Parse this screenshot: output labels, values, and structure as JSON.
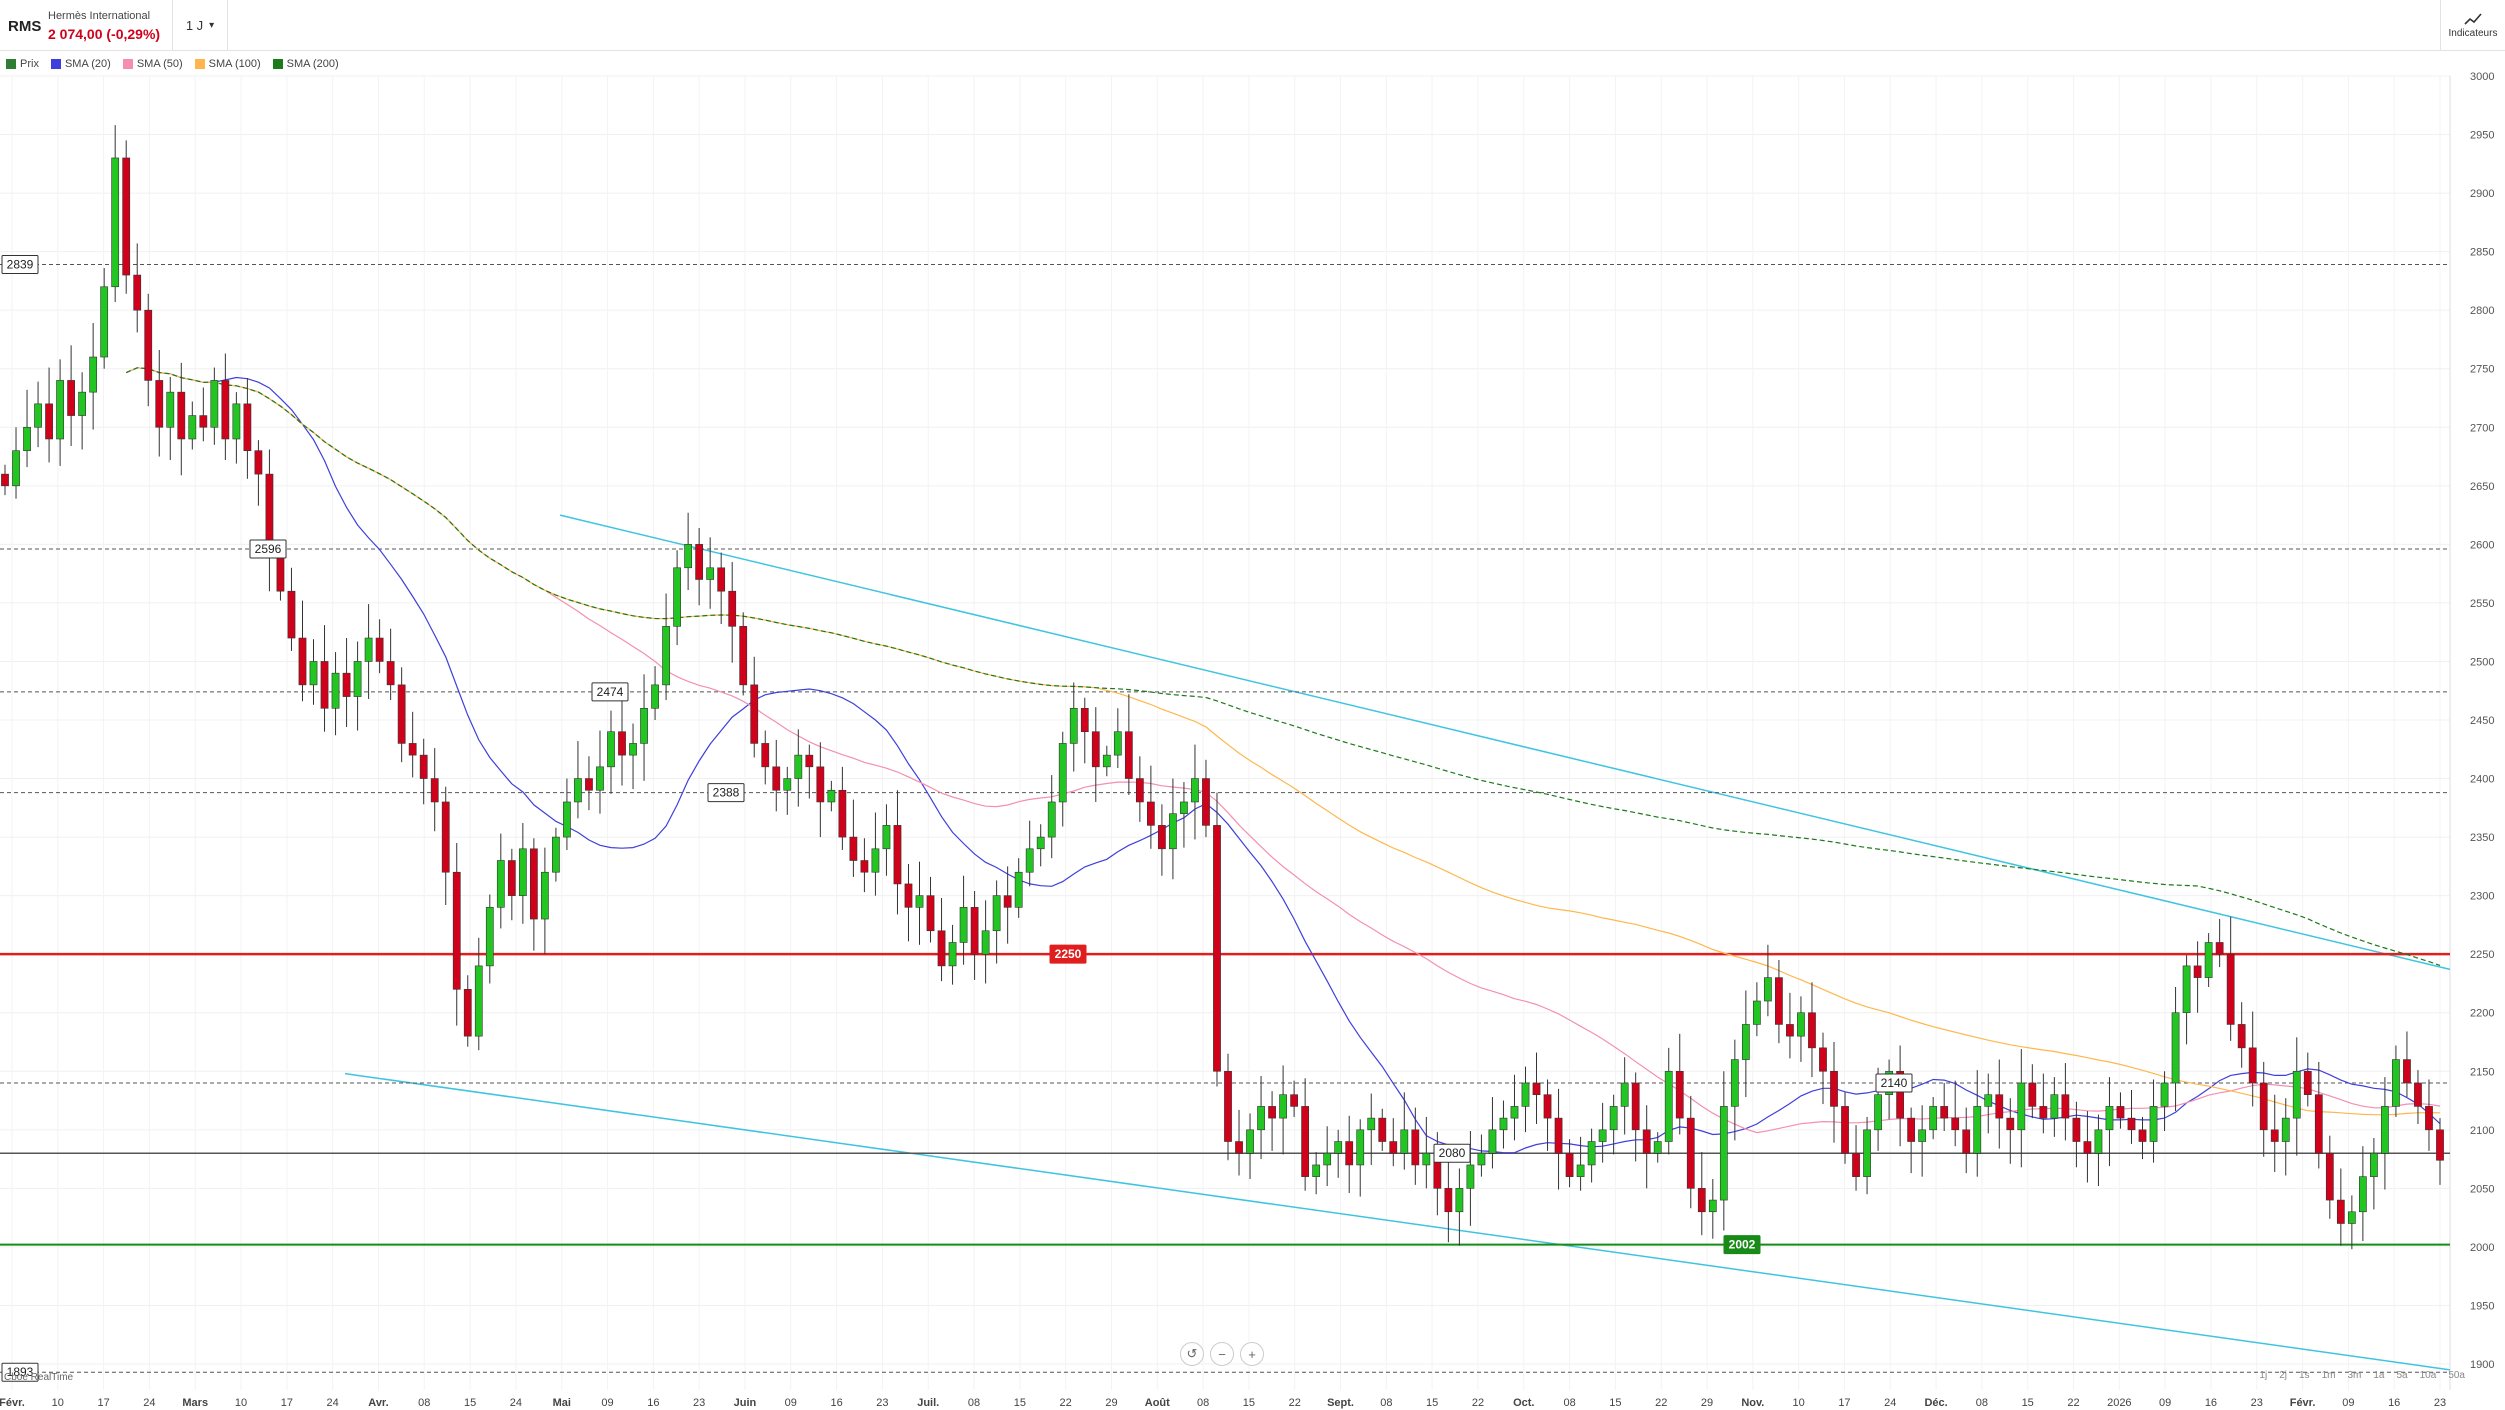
{
  "header": {
    "ticker": "RMS",
    "name": "Hermès International",
    "price": "2 074,00 (-0,29%)",
    "timeframe": "1 J",
    "indicators_label": "Indicateurs"
  },
  "legend": [
    {
      "label": "Prix",
      "color": "#2e7d32"
    },
    {
      "label": "SMA (20)",
      "color": "#3f3fdc"
    },
    {
      "label": "SMA (50)",
      "color": "#f48fb1"
    },
    {
      "label": "SMA (100)",
      "color": "#ffb74d"
    },
    {
      "label": "SMA (200)",
      "color": "#1b7a1b"
    }
  ],
  "periods": [
    "1j",
    "2j",
    "1s",
    "1m",
    "3m",
    "1a",
    "5a",
    "10a",
    "50a"
  ],
  "source": "Cboe RealTime",
  "chart_data": {
    "type": "candlestick",
    "ylim": [
      1900,
      3000
    ],
    "yticks": [
      1900,
      1950,
      2000,
      2050,
      2100,
      2150,
      2200,
      2250,
      2300,
      2350,
      2400,
      2450,
      2500,
      2550,
      2600,
      2650,
      2700,
      2750,
      2800,
      2850,
      2900,
      2950,
      3000
    ],
    "xticks": [
      "Févr.",
      "10",
      "17",
      "24",
      "Mars",
      "10",
      "17",
      "24",
      "Avr.",
      "08",
      "15",
      "24",
      "Mai",
      "09",
      "16",
      "23",
      "Juin",
      "09",
      "16",
      "23",
      "Juil.",
      "08",
      "15",
      "22",
      "29",
      "Août",
      "08",
      "15",
      "22",
      "Sept.",
      "08",
      "15",
      "22",
      "Oct.",
      "08",
      "15",
      "22",
      "29",
      "Nov.",
      "10",
      "17",
      "24",
      "Déc.",
      "08",
      "15",
      "22",
      "2026",
      "09",
      "16",
      "23",
      "Févr.",
      "09",
      "16",
      "23"
    ],
    "closes": [
      2650,
      2680,
      2700,
      2720,
      2690,
      2740,
      2710,
      2730,
      2760,
      2820,
      2930,
      2830,
      2800,
      2740,
      2700,
      2730,
      2690,
      2710,
      2700,
      2740,
      2690,
      2720,
      2680,
      2660,
      2590,
      2560,
      2520,
      2480,
      2500,
      2460,
      2490,
      2470,
      2500,
      2520,
      2500,
      2480,
      2430,
      2420,
      2400,
      2380,
      2320,
      2220,
      2180,
      2240,
      2290,
      2330,
      2300,
      2340,
      2280,
      2320,
      2350,
      2380,
      2400,
      2390,
      2410,
      2440,
      2420,
      2430,
      2460,
      2480,
      2530,
      2580,
      2600,
      2570,
      2580,
      2560,
      2530,
      2480,
      2430,
      2410,
      2390,
      2400,
      2420,
      2410,
      2380,
      2390,
      2350,
      2330,
      2320,
      2340,
      2360,
      2310,
      2290,
      2300,
      2270,
      2240,
      2260,
      2290,
      2250,
      2270,
      2300,
      2290,
      2320,
      2340,
      2350,
      2380,
      2430,
      2460,
      2440,
      2410,
      2420,
      2440,
      2400,
      2380,
      2360,
      2340,
      2370,
      2380,
      2400,
      2360,
      2150,
      2090,
      2080,
      2100,
      2120,
      2110,
      2130,
      2120,
      2060,
      2070,
      2080,
      2090,
      2070,
      2100,
      2110,
      2090,
      2080,
      2100,
      2070,
      2080,
      2050,
      2030,
      2050,
      2070,
      2080,
      2100,
      2110,
      2120,
      2140,
      2130,
      2110,
      2080,
      2060,
      2070,
      2090,
      2100,
      2120,
      2140,
      2100,
      2080,
      2090,
      2150,
      2110,
      2050,
      2030,
      2040,
      2120,
      2160,
      2190,
      2210,
      2230,
      2190,
      2180,
      2200,
      2170,
      2150,
      2120,
      2080,
      2060,
      2100,
      2130,
      2150,
      2110,
      2090,
      2100,
      2120,
      2110,
      2100,
      2080,
      2120,
      2130,
      2110,
      2100,
      2140,
      2120,
      2110,
      2130,
      2110,
      2090,
      2080,
      2100,
      2120,
      2110,
      2100,
      2090,
      2120,
      2140,
      2200,
      2240,
      2230,
      2260,
      2250,
      2190,
      2170,
      2140,
      2100,
      2090,
      2110,
      2150,
      2130,
      2080,
      2040,
      2020,
      2030,
      2060,
      2080,
      2120,
      2160,
      2140,
      2120,
      2100,
      2074
    ]
  },
  "levels": [
    {
      "label": "2839",
      "value": 2839
    },
    {
      "label": "2596",
      "value": 2596
    },
    {
      "label": "2474",
      "value": 2474
    },
    {
      "label": "2388",
      "value": 2388
    },
    {
      "label": "2250",
      "value": 2250
    },
    {
      "label": "2140",
      "value": 2140
    },
    {
      "label": "2080",
      "value": 2080
    },
    {
      "label": "2002",
      "value": 2002
    },
    {
      "label": "1893",
      "value": 1893
    }
  ],
  "trendlines": [
    {
      "from": {
        "date": "22 avr.",
        "value": 2625
      },
      "to": {
        "date": "23 févr.",
        "value": 2237
      }
    },
    {
      "from": {
        "date": "26 mars",
        "value": 2148
      },
      "to": {
        "date": "23 févr.",
        "value": 1895
      }
    }
  ]
}
